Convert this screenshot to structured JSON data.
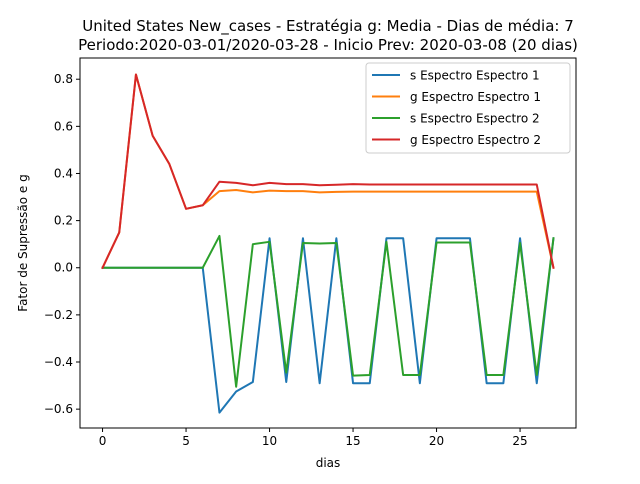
{
  "chart_data": {
    "type": "line",
    "title_line1": "United States New_cases - Estratégia g: Media - Dias de média: 7",
    "title_line2": "Periodo:2020-03-01/2020-03-28 - Inicio Prev: 2020-03-08 (20 dias)",
    "xlabel": "dias",
    "ylabel": "Fator de Supressão e g",
    "xlim": [
      -1.35,
      28.35
    ],
    "ylim": [
      -0.68,
      0.89
    ],
    "xticks": [
      0,
      5,
      10,
      15,
      20,
      25
    ],
    "yticks": [
      -0.6,
      -0.4,
      -0.2,
      0.0,
      0.2,
      0.4,
      0.6,
      0.8
    ],
    "xtick_labels": [
      "0",
      "5",
      "10",
      "15",
      "20",
      "25"
    ],
    "ytick_labels": [
      "−0.6",
      "−0.4",
      "−0.2",
      "0.0",
      "0.2",
      "0.4",
      "0.6",
      "0.8"
    ],
    "grid": false,
    "legend_position": "top-right",
    "x": [
      0,
      1,
      2,
      3,
      4,
      5,
      6,
      7,
      8,
      9,
      10,
      11,
      12,
      13,
      14,
      15,
      16,
      17,
      18,
      19,
      20,
      21,
      22,
      23,
      24,
      25,
      26,
      27
    ],
    "series": [
      {
        "name": "s Espectro Espectro 1",
        "color": "#1f77b4",
        "values": [
          0,
          0,
          0,
          0,
          0,
          0,
          0,
          -0.615,
          -0.525,
          -0.485,
          0.125,
          -0.485,
          0.125,
          -0.49,
          0.125,
          -0.49,
          -0.49,
          0.125,
          0.125,
          -0.49,
          0.125,
          0.125,
          0.125,
          -0.49,
          -0.49,
          0.125,
          -0.49,
          0.125
        ]
      },
      {
        "name": "g Espectro Espectro 1",
        "color": "#ff7f0e",
        "values": [
          0,
          0.15,
          0.82,
          0.56,
          0.44,
          0.25,
          0.265,
          0.325,
          0.33,
          0.32,
          0.327,
          0.325,
          0.325,
          0.32,
          0.322,
          0.323,
          0.323,
          0.323,
          0.323,
          0.323,
          0.323,
          0.323,
          0.323,
          0.323,
          0.323,
          0.323,
          0.323,
          0.0
        ]
      },
      {
        "name": "s Espectro Espectro 2",
        "color": "#2ca02c",
        "values": [
          0,
          0,
          0,
          0,
          0,
          0,
          0,
          0.135,
          -0.505,
          0.1,
          0.11,
          -0.445,
          0.105,
          0.103,
          0.105,
          -0.458,
          -0.455,
          0.11,
          -0.455,
          -0.455,
          0.107,
          0.107,
          0.107,
          -0.455,
          -0.455,
          0.105,
          -0.455,
          0.125
        ]
      },
      {
        "name": "g Espectro Espectro 2",
        "color": "#d62728",
        "values": [
          0,
          0.15,
          0.82,
          0.56,
          0.44,
          0.25,
          0.265,
          0.365,
          0.36,
          0.35,
          0.36,
          0.355,
          0.355,
          0.35,
          0.352,
          0.355,
          0.353,
          0.353,
          0.353,
          0.353,
          0.353,
          0.353,
          0.353,
          0.353,
          0.353,
          0.353,
          0.353,
          0.0
        ]
      }
    ]
  }
}
